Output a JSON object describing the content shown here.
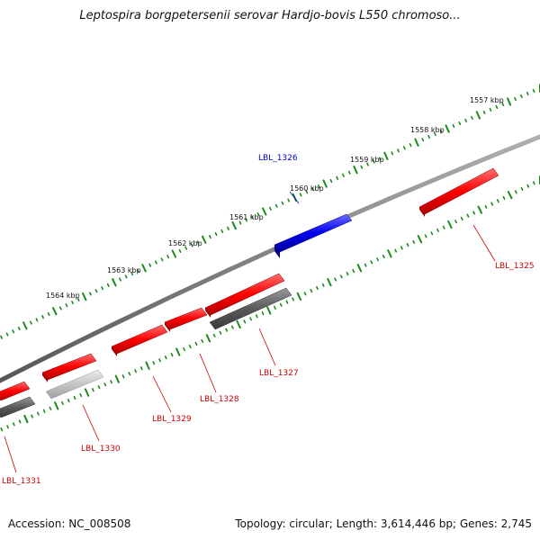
{
  "title": "Leptospira borgpetersenii serovar Hardjo-bovis L550 chromoso...",
  "footer": {
    "accession": "Accession: NC_008508",
    "topology": "Topology: circular; Length: 3,614,446 bp; Genes: 2,745"
  },
  "ruler_ticks": [
    {
      "label": "1557 kbp"
    },
    {
      "label": "1558 kbp"
    },
    {
      "label": "1559 kbp"
    },
    {
      "label": "1560 kbp"
    },
    {
      "label": "1561 kbp"
    },
    {
      "label": "1562 kbp"
    },
    {
      "label": "1563 kbp"
    },
    {
      "label": "1564 kbp"
    }
  ],
  "genes": [
    {
      "label": "LBL_1325",
      "color": "#cc0000"
    },
    {
      "label": "LBL_1326",
      "color": "#0000cc"
    },
    {
      "label": "LBL_1327",
      "color": "#cc0000"
    },
    {
      "label": "LBL_1328",
      "color": "#cc0000"
    },
    {
      "label": "LBL_1329",
      "color": "#cc0000"
    },
    {
      "label": "LBL_1330",
      "color": "#cc0000"
    },
    {
      "label": "LBL_1331",
      "color": "#cc0000"
    }
  ],
  "colors": {
    "forward_gene": "#ff1a1a",
    "reverse_gene": "#1a1aff",
    "backbone": "#808080",
    "ruler": "#1a8a1a",
    "feature_dark": "#666666",
    "feature_light": "#c8c8c8"
  }
}
